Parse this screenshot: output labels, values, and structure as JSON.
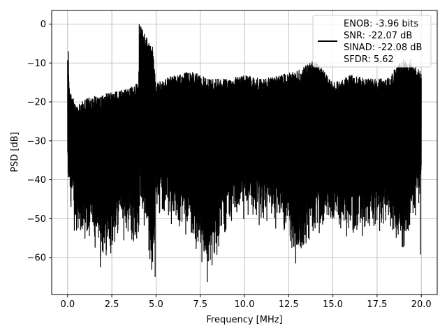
{
  "chart_data": {
    "type": "line",
    "title": "",
    "xlabel": "Frequency [MHz]",
    "ylabel": "PSD [dB]",
    "xlim": [
      -0.9,
      20.9
    ],
    "ylim": [
      -69.5,
      3.5
    ],
    "xticks": [
      0.0,
      2.5,
      5.0,
      7.5,
      10.0,
      12.5,
      15.0,
      17.5,
      20.0
    ],
    "xtick_labels": [
      "0.0",
      "2.5",
      "5.0",
      "7.5",
      "10.0",
      "12.5",
      "15.0",
      "17.5",
      "20.0"
    ],
    "yticks": [
      0,
      -10,
      -20,
      -30,
      -40,
      -50,
      -60
    ],
    "ytick_labels": [
      "0",
      "−10",
      "−20",
      "−30",
      "−40",
      "−50",
      "−60"
    ],
    "grid": true,
    "legend_position": "top-right",
    "legend_lines": [
      "ENOB: -3.96 bits",
      "SNR: -22.07 dB",
      "SINAD: -22.08 dB",
      "SFDR: 5.62"
    ],
    "series": [
      {
        "color": "#000000",
        "description": "dense noise-like power spectral density trace over 0–20 MHz",
        "envelope": {
          "x": [
            0.0,
            0.1,
            0.5,
            1.0,
            2.0,
            3.0,
            4.0,
            4.1,
            4.8,
            5.0,
            6.0,
            7.0,
            8.0,
            9.0,
            10.0,
            11.0,
            12.0,
            13.0,
            14.0,
            15.0,
            16.0,
            17.0,
            18.0,
            19.0,
            20.0
          ],
          "upper": [
            -7,
            -16,
            -21,
            -19,
            -18,
            -17,
            -15,
            0,
            -6,
            -15,
            -13,
            -12,
            -14,
            -14,
            -13,
            -14,
            -13,
            -12,
            -9,
            -15,
            -13,
            -14,
            -14,
            -9,
            -12
          ],
          "lower": [
            -47,
            -45,
            -58,
            -56,
            -62,
            -56,
            -57,
            -48,
            -65,
            -48,
            -54,
            -56,
            -66,
            -53,
            -51,
            -53,
            -53,
            -62,
            -55,
            -54,
            -56,
            -55,
            -55,
            -59,
            -46
          ]
        },
        "spikes": [
          {
            "x": 0.05,
            "y": -7.0
          },
          {
            "x": 4.05,
            "y": 0.0
          },
          {
            "x": 4.8,
            "y": -5.8
          },
          {
            "x": 1.85,
            "y": -62.5
          },
          {
            "x": 4.95,
            "y": -65.0
          },
          {
            "x": 7.9,
            "y": -66.3
          },
          {
            "x": 12.9,
            "y": -61.5
          },
          {
            "x": 13.6,
            "y": -11.5
          },
          {
            "x": 19.4,
            "y": -9.0
          },
          {
            "x": 19.95,
            "y": -59.2
          }
        ]
      }
    ]
  }
}
